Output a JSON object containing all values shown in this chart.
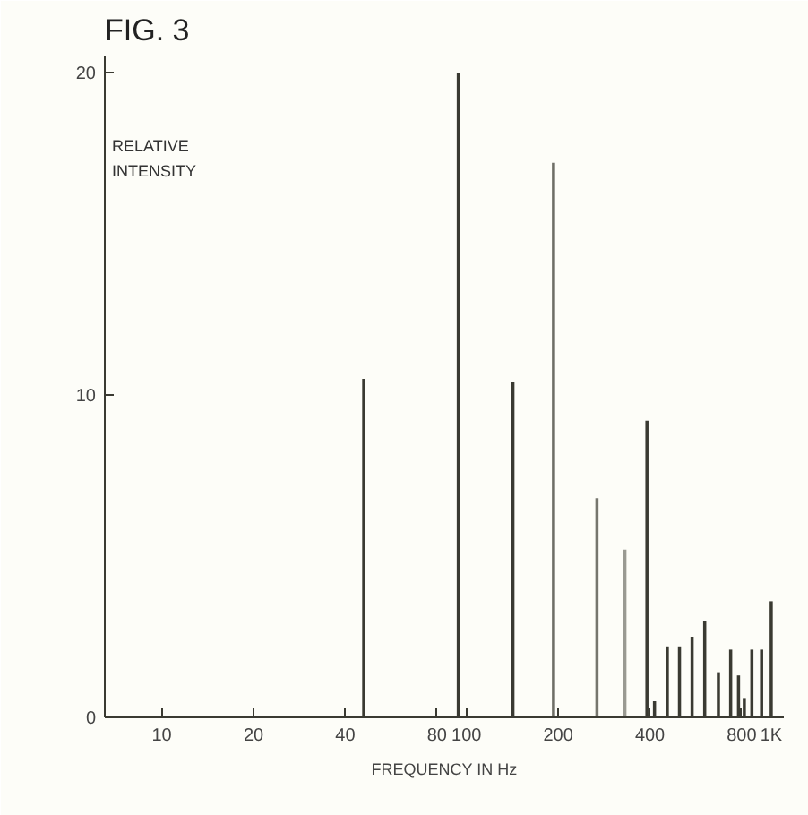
{
  "chart_data": {
    "type": "bar",
    "title": "FIG. 3",
    "xlabel": "FREQUENCY IN Hz",
    "ylabel": "RELATIVE INTENSITY",
    "x": [
      46,
      94,
      142,
      193,
      268,
      331,
      391,
      414,
      456,
      500,
      550,
      605,
      671,
      736,
      781,
      816,
      864,
      930,
      1000
    ],
    "values": [
      10.5,
      20,
      10.4,
      17.2,
      6.8,
      5.2,
      9.2,
      0.5,
      2.2,
      2.2,
      2.5,
      3.0,
      1.4,
      2.1,
      1.3,
      0.6,
      2.1,
      2.1,
      3.6
    ],
    "colors": [
      "#3a3a32",
      "#3a3a32",
      "#3a3a32",
      "#6e6e66",
      "#76766e",
      "#9a9a92",
      "#3a3a32",
      "#3a3a32",
      "#3a3a32",
      "#3a3a32",
      "#3a3a32",
      "#3a3a32",
      "#3a3a32",
      "#3a3a32",
      "#3a3a32",
      "#3a3a32",
      "#3a3a32",
      "#3a3a32",
      "#3a3a32"
    ],
    "log": "x",
    "xlim": [
      6.5,
      1100
    ],
    "ylim": [
      0,
      20.5
    ],
    "xticks": [
      10,
      20,
      40,
      80,
      100,
      200,
      400,
      800,
      {
        "value": 1000,
        "label": "1K"
      }
    ],
    "yticks": [
      0,
      10,
      20
    ],
    "grid": false
  }
}
